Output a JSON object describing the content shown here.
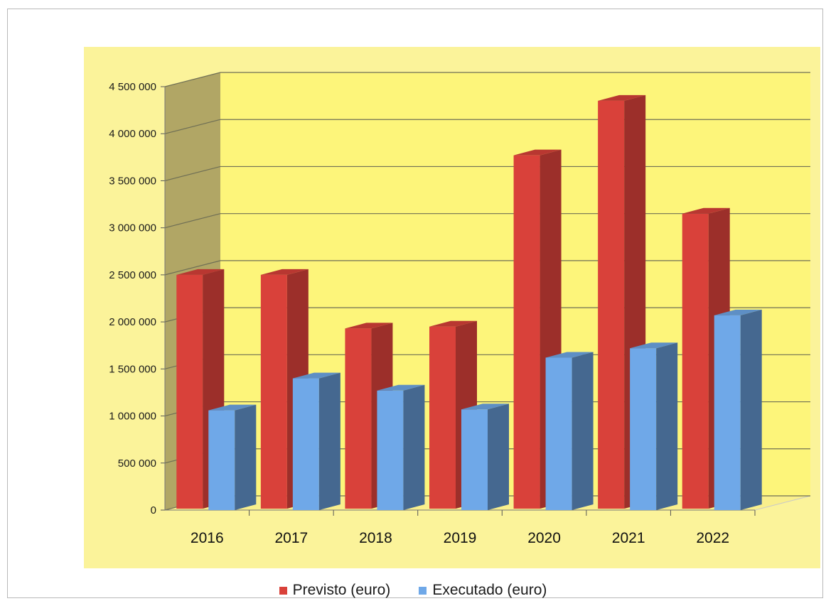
{
  "colors": {
    "previsto": "#d9413a",
    "executado": "#6fa8e8",
    "wall": "#fdf57a",
    "side_wall": "#b1a665",
    "floor": "#f9ef8c"
  },
  "chart_data": {
    "type": "bar",
    "title": "",
    "xlabel": "",
    "ylabel": "",
    "categories": [
      "2016",
      "2017",
      "2018",
      "2019",
      "2020",
      "2021",
      "2022"
    ],
    "series": [
      {
        "name": "Previsto (euro)",
        "values": [
          2500000,
          2500000,
          1930000,
          1950000,
          3770000,
          4350000,
          3150000
        ]
      },
      {
        "name": "Executado (euro)",
        "values": [
          1060000,
          1400000,
          1270000,
          1070000,
          1620000,
          1720000,
          2070000
        ]
      }
    ],
    "ylim": [
      0,
      4500000
    ],
    "yticks": [
      "0",
      "500 000",
      "1 000 000",
      "1 500 000",
      "2 000 000",
      "2 500 000",
      "3 000 000",
      "3 500 000",
      "4 000 000",
      "4 500 000"
    ],
    "grid": true,
    "legend_position": "bottom",
    "style": "3d-clustered-column"
  },
  "legend": [
    {
      "label": "Previsto (euro)",
      "color_key": "previsto"
    },
    {
      "label": "Executado (euro)",
      "color_key": "executado"
    }
  ]
}
